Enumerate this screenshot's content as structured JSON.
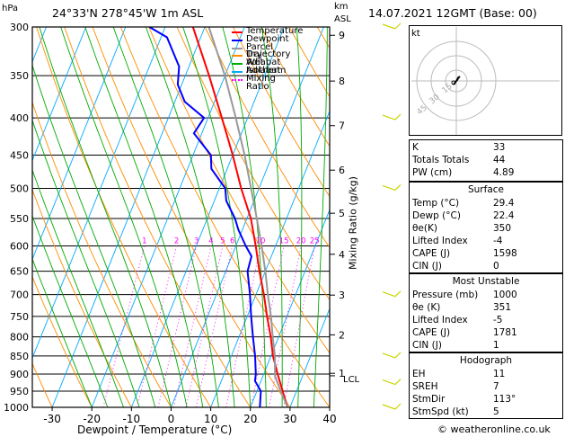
{
  "header": {
    "station": "24°33'N  278°45'W  1m  ASL",
    "datetime": "14.07.2021  12GMT  (Base: 00)"
  },
  "axis": {
    "hpa_label": "hPa",
    "km_label": "km",
    "asl_label": "ASL",
    "mixing_ratio_label": "Mixing Ratio (g/kg)",
    "xlabel": "Dewpoint / Temperature (°C)",
    "lcl_label": "LCL",
    "footer": "© weatheronline.co.uk"
  },
  "legend": [
    {
      "label": "Temperature",
      "color": "#ff0000",
      "style": "solid"
    },
    {
      "label": "Dewpoint",
      "color": "#0000ff",
      "style": "solid"
    },
    {
      "label": "Parcel Trajectory",
      "color": "#999999",
      "style": "solid"
    },
    {
      "label": "Dry Adiabat",
      "color": "#ff8c00",
      "style": "solid"
    },
    {
      "label": "Wet Adiabat",
      "color": "#00aa00",
      "style": "solid"
    },
    {
      "label": "Isotherm",
      "color": "#00aaff",
      "style": "solid"
    },
    {
      "label": "Mixing Ratio",
      "color": "#ff00ff",
      "style": "dotted"
    }
  ],
  "chart_data": {
    "type": "line",
    "skew_t": true,
    "xlim": [
      -35,
      40
    ],
    "pressure_levels": [
      300,
      350,
      400,
      450,
      500,
      550,
      600,
      650,
      700,
      750,
      800,
      850,
      900,
      950,
      1000
    ],
    "x_ticks": [
      -30,
      -20,
      -10,
      0,
      10,
      20,
      30,
      40
    ],
    "km_ticks": [
      {
        "label": "9",
        "p": 308
      },
      {
        "label": "8",
        "p": 356
      },
      {
        "label": "7",
        "p": 410
      },
      {
        "label": "6",
        "p": 472
      },
      {
        "label": "5",
        "p": 541
      },
      {
        "label": "4",
        "p": 616
      },
      {
        "label": "3",
        "p": 701
      },
      {
        "label": "2",
        "p": 795
      },
      {
        "label": "1",
        "p": 898
      }
    ],
    "mixing_ratio_labels": [
      "1",
      "2",
      "3",
      "4",
      "5",
      "6",
      "10",
      "15",
      "20",
      "25"
    ],
    "mixing_ratio_values": [
      1,
      2,
      3,
      4,
      5,
      6,
      10,
      15,
      20,
      25
    ],
    "lcl_p": 905,
    "series": [
      {
        "name": "Temperature",
        "points": [
          [
            1000,
            29.4
          ],
          [
            950,
            26.5
          ],
          [
            900,
            23.5
          ],
          [
            850,
            20.5
          ],
          [
            800,
            18.0
          ],
          [
            750,
            15.0
          ],
          [
            700,
            12.0
          ],
          [
            650,
            8.5
          ],
          [
            600,
            5.0
          ],
          [
            550,
            1.0
          ],
          [
            500,
            -4.5
          ],
          [
            450,
            -10.0
          ],
          [
            400,
            -16.5
          ],
          [
            350,
            -24.0
          ],
          [
            300,
            -33.0
          ]
        ]
      },
      {
        "name": "Dewpoint",
        "points": [
          [
            1000,
            22.4
          ],
          [
            950,
            21.0
          ],
          [
            920,
            18.5
          ],
          [
            900,
            18.0
          ],
          [
            850,
            16.0
          ],
          [
            800,
            13.5
          ],
          [
            750,
            11.0
          ],
          [
            700,
            8.5
          ],
          [
            650,
            5.5
          ],
          [
            620,
            5.0
          ],
          [
            600,
            2.5
          ],
          [
            570,
            -1.0
          ],
          [
            550,
            -3.0
          ],
          [
            520,
            -7.0
          ],
          [
            500,
            -8.5
          ],
          [
            470,
            -14.0
          ],
          [
            450,
            -15.5
          ],
          [
            420,
            -22.0
          ],
          [
            400,
            -21.0
          ],
          [
            380,
            -27.5
          ],
          [
            360,
            -31.0
          ],
          [
            340,
            -32.5
          ],
          [
            310,
            -38.5
          ],
          [
            300,
            -44.0
          ]
        ]
      },
      {
        "name": "Parcel Trajectory",
        "points": [
          [
            1000,
            29.4
          ],
          [
            950,
            26.0
          ],
          [
            905,
            23.0
          ],
          [
            850,
            21.0
          ],
          [
            800,
            18.5
          ],
          [
            750,
            16.0
          ],
          [
            700,
            13.0
          ],
          [
            650,
            10.0
          ],
          [
            600,
            6.5
          ],
          [
            550,
            2.5
          ],
          [
            500,
            -2.0
          ],
          [
            450,
            -7.0
          ],
          [
            400,
            -13.0
          ],
          [
            350,
            -20.0
          ],
          [
            300,
            -29.0
          ]
        ]
      }
    ]
  },
  "hodograph": {
    "title": "kt",
    "ring_labels": [
      "45",
      "30",
      "15"
    ]
  },
  "winds": [
    {
      "p": 300
    },
    {
      "p": 400
    },
    {
      "p": 500
    },
    {
      "p": 700
    },
    {
      "p": 850
    },
    {
      "p": 925
    },
    {
      "p": 1000
    }
  ],
  "indices": [
    {
      "label": "K",
      "value": "33"
    },
    {
      "label": "Totals Totals",
      "value": "44"
    },
    {
      "label": "PW (cm)",
      "value": "4.89"
    }
  ],
  "surface": {
    "title": "Surface",
    "rows": [
      {
        "label": "Temp (°C)",
        "value": "29.4"
      },
      {
        "label": "Dewp (°C)",
        "value": "22.4"
      },
      {
        "label": "θe(K)",
        "value": "350"
      },
      {
        "label": "Lifted Index",
        "value": "-4"
      },
      {
        "label": "CAPE (J)",
        "value": "1598"
      },
      {
        "label": "CIN (J)",
        "value": "0"
      }
    ]
  },
  "most_unstable": {
    "title": "Most Unstable",
    "rows": [
      {
        "label": "Pressure (mb)",
        "value": "1000"
      },
      {
        "label": "θe (K)",
        "value": "351"
      },
      {
        "label": "Lifted Index",
        "value": "-5"
      },
      {
        "label": "CAPE (J)",
        "value": "1781"
      },
      {
        "label": "CIN (J)",
        "value": "1"
      }
    ]
  },
  "hodograph_table": {
    "title": "Hodograph",
    "rows": [
      {
        "label": "EH",
        "value": "11"
      },
      {
        "label": "SREH",
        "value": "7"
      },
      {
        "label": "StmDir",
        "value": "113°"
      },
      {
        "label": "StmSpd (kt)",
        "value": "5"
      }
    ]
  }
}
